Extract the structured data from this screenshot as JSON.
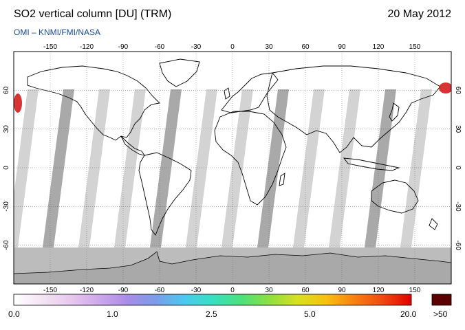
{
  "header": {
    "title": "SO2 vertical column [DU] (TRM)",
    "date": "20 May 2012",
    "subtitle": "OMI  –  KNMI/FMI/NASA"
  },
  "map": {
    "lon_ticks": [
      "-150",
      "-120",
      "-90",
      "-60",
      "-30",
      "0",
      "30",
      "60",
      "90",
      "120",
      "150"
    ],
    "lat_ticks": [
      "60",
      "30",
      "0",
      "-30",
      "-60"
    ],
    "lon_values": [
      -150,
      -120,
      -90,
      -60,
      -30,
      0,
      30,
      60,
      90,
      120,
      150
    ],
    "lat_values": [
      60,
      30,
      0,
      -30,
      -60
    ],
    "lon_range": [
      -180,
      180
    ],
    "lat_range": [
      -90,
      90
    ],
    "gridlines": true,
    "projection": "equirectangular",
    "colors": {
      "ocean": "#ffffff",
      "swath_gap": "#d3d3d3",
      "swath_dark": "#a9a9a9",
      "polar_night": "#a9a9a9",
      "land_outline": "#000000",
      "hotspot": "#cc0000"
    }
  },
  "colorbar": {
    "labels": [
      "0.0",
      "1.0",
      "2.5",
      "5.0",
      "20.0"
    ],
    "overflow_label": ">50",
    "colors": [
      "#ffffff",
      "#f4e4f4",
      "#e8c8ee",
      "#cfa8ec",
      "#a88ce8",
      "#7b9ce8",
      "#4cc8f0",
      "#37e0c0",
      "#4ce07c",
      "#8ce040",
      "#d8e020",
      "#f8c010",
      "#f88010",
      "#f04810",
      "#e00000"
    ],
    "overflow_color": "#5a0000"
  }
}
